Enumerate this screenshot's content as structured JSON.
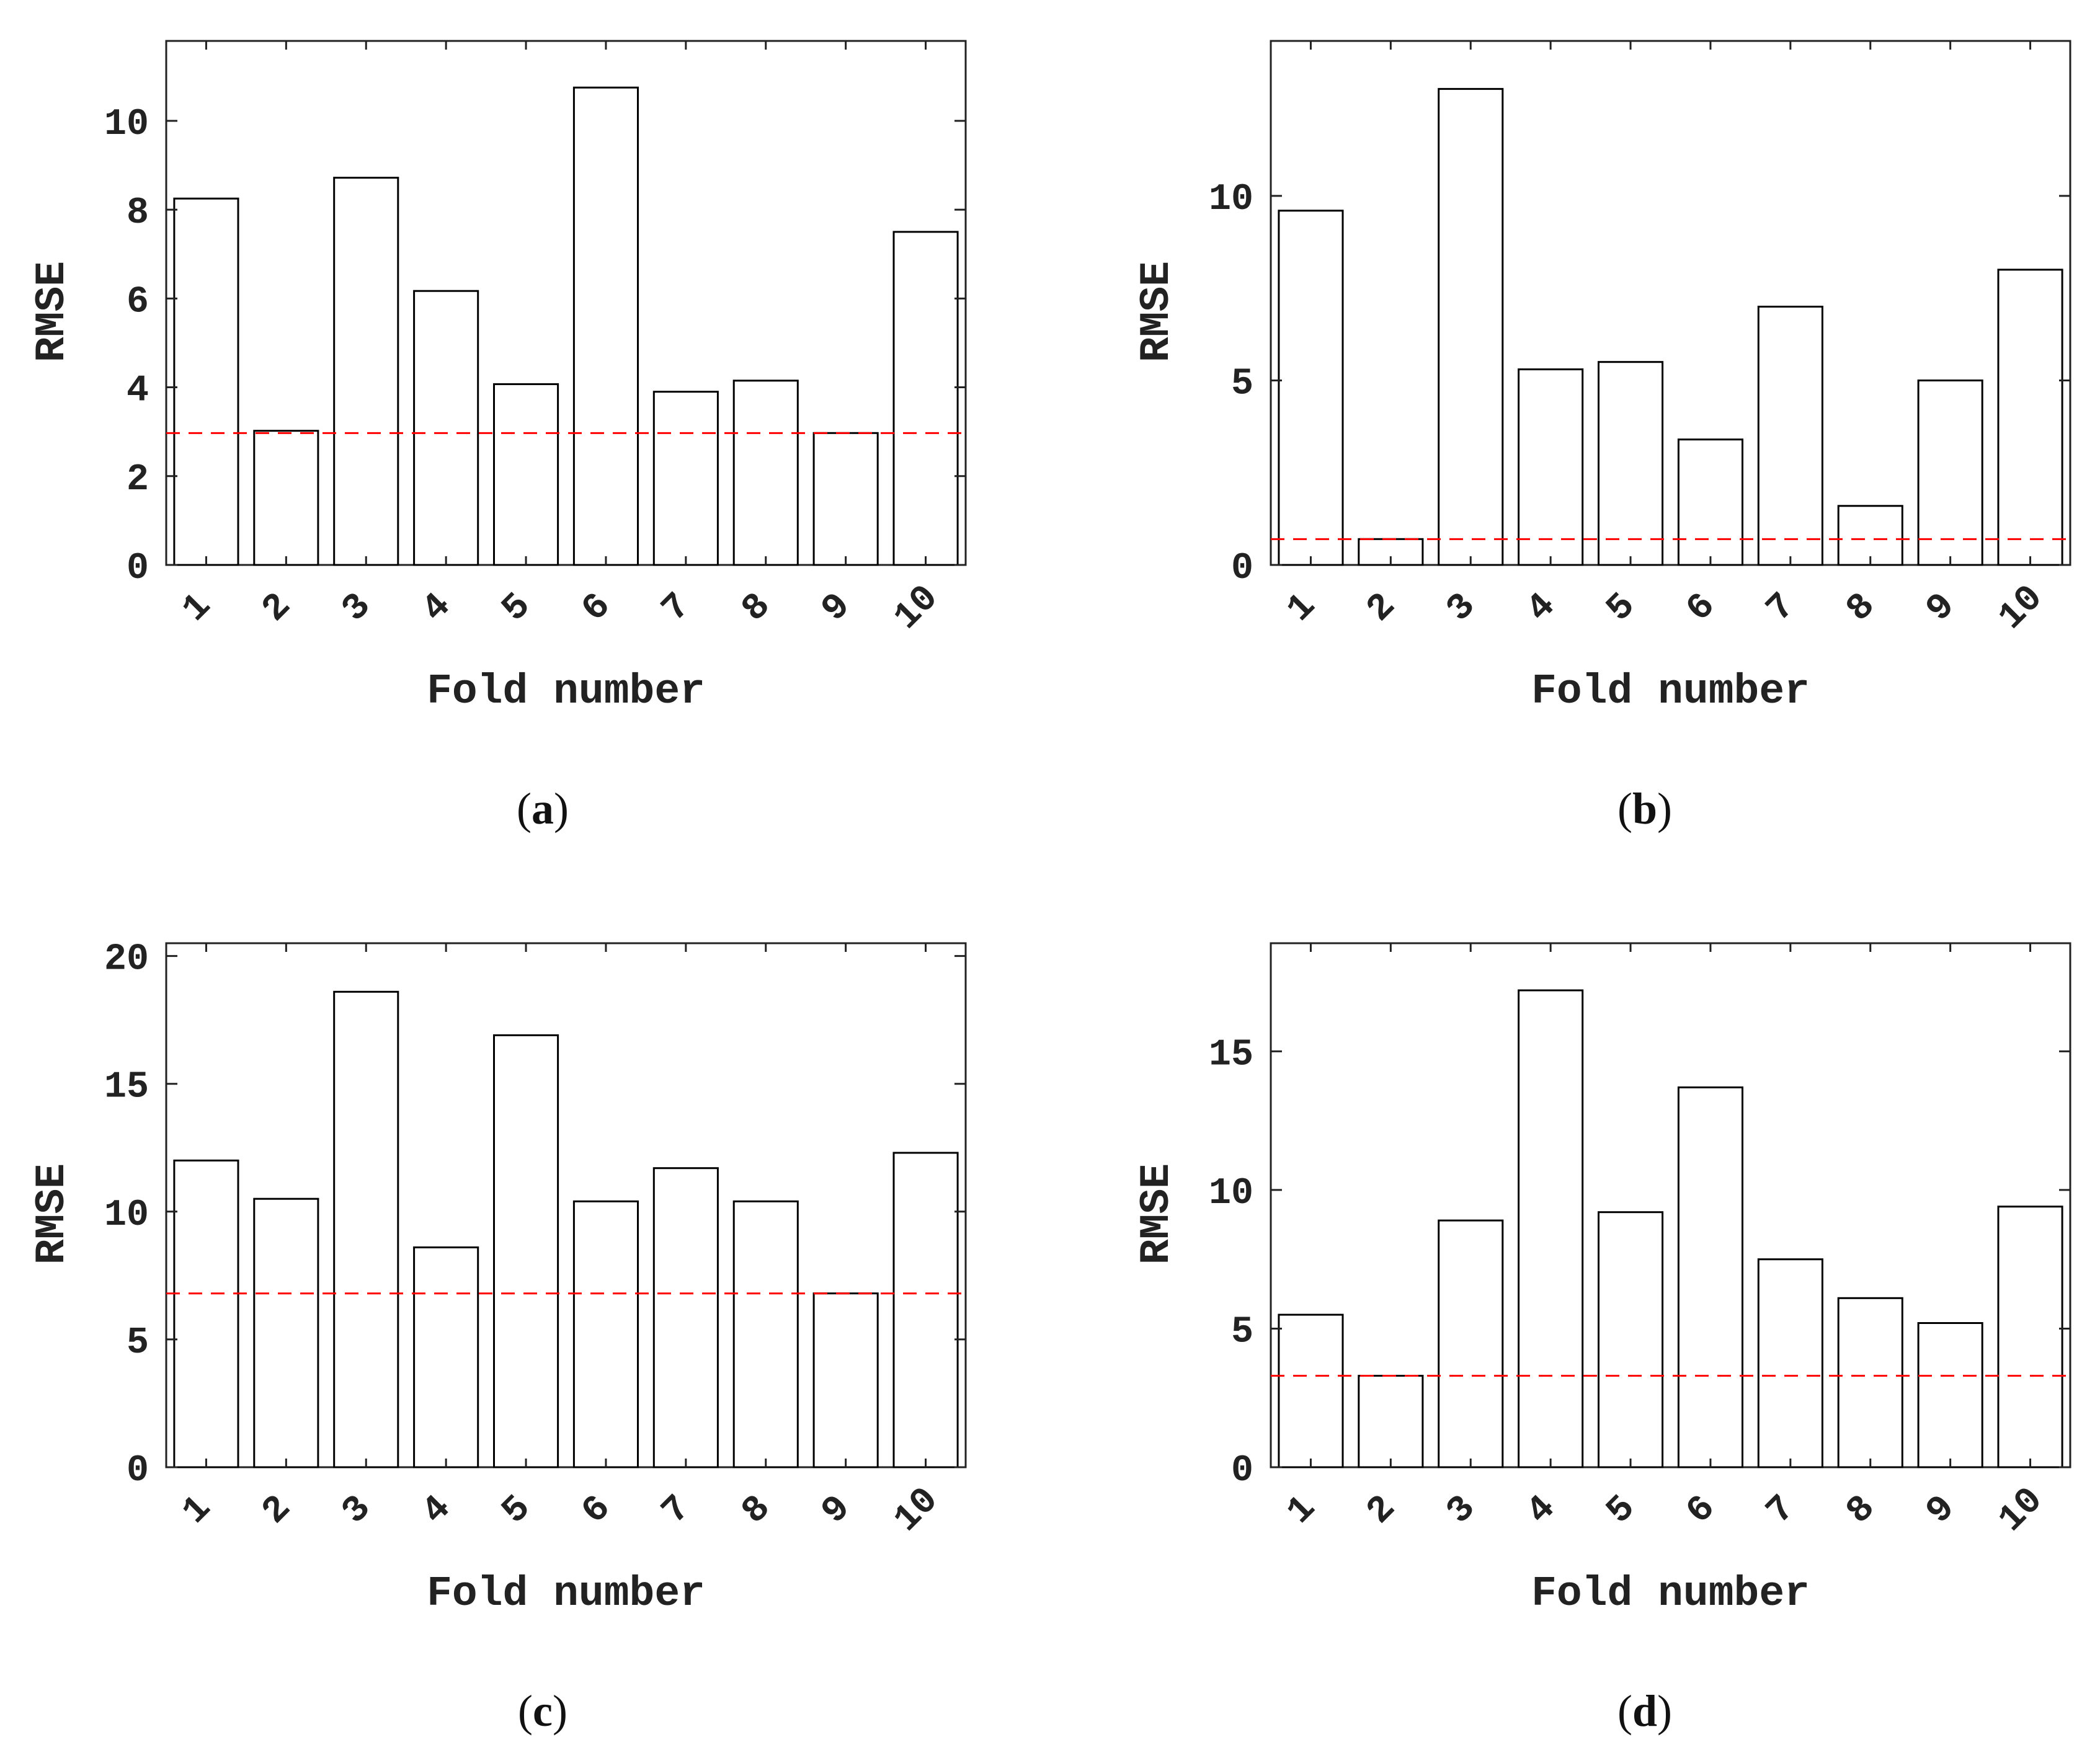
{
  "figure": {
    "background": "#ffffff",
    "bar_fill": "#ffffff",
    "bar_stroke": "#000000",
    "reference_color": "#ff0000"
  },
  "chart_data": [
    {
      "panel": "a",
      "type": "bar",
      "categories": [
        "1",
        "2",
        "3",
        "4",
        "5",
        "6",
        "7",
        "8",
        "9",
        "10"
      ],
      "values": [
        8.25,
        3.02,
        8.72,
        6.17,
        4.07,
        10.75,
        3.9,
        4.15,
        2.97,
        7.5
      ],
      "reference_line": 2.97,
      "ylim": [
        0,
        11.8
      ],
      "yticks": [
        0,
        2,
        4,
        6,
        8,
        10
      ],
      "xlabel": "Fold number",
      "ylabel": "RMSE",
      "caption": {
        "open": "(",
        "letter": "a",
        "close": ")"
      }
    },
    {
      "panel": "b",
      "type": "bar",
      "categories": [
        "1",
        "2",
        "3",
        "4",
        "5",
        "6",
        "7",
        "8",
        "9",
        "10"
      ],
      "values": [
        9.6,
        0.7,
        12.9,
        5.3,
        5.5,
        3.4,
        7.0,
        1.6,
        5.0,
        8.0
      ],
      "reference_line": 0.7,
      "ylim": [
        0,
        14.2
      ],
      "yticks": [
        0,
        5,
        10
      ],
      "xlabel": "Fold number",
      "ylabel": "RMSE",
      "caption": {
        "open": "(",
        "letter": "b",
        "close": ")"
      }
    },
    {
      "panel": "c",
      "type": "bar",
      "categories": [
        "1",
        "2",
        "3",
        "4",
        "5",
        "6",
        "7",
        "8",
        "9",
        "10"
      ],
      "values": [
        12.0,
        10.5,
        18.6,
        8.6,
        16.9,
        10.4,
        11.7,
        10.4,
        6.8,
        12.3
      ],
      "reference_line": 6.8,
      "ylim": [
        0,
        20.5
      ],
      "yticks": [
        0,
        5,
        10,
        15,
        20
      ],
      "xlabel": "Fold number",
      "ylabel": "RMSE",
      "caption": {
        "open": "(",
        "letter": "c",
        "close": ")"
      }
    },
    {
      "panel": "d",
      "type": "bar",
      "categories": [
        "1",
        "2",
        "3",
        "4",
        "5",
        "6",
        "7",
        "8",
        "9",
        "10"
      ],
      "values": [
        5.5,
        3.3,
        8.9,
        17.2,
        9.2,
        13.7,
        7.5,
        6.1,
        5.2,
        9.4
      ],
      "reference_line": 3.3,
      "ylim": [
        0,
        18.9
      ],
      "yticks": [
        0,
        5,
        10,
        15
      ],
      "xlabel": "Fold number",
      "ylabel": "RMSE",
      "caption": {
        "open": "(",
        "letter": "d",
        "close": ")"
      }
    }
  ]
}
